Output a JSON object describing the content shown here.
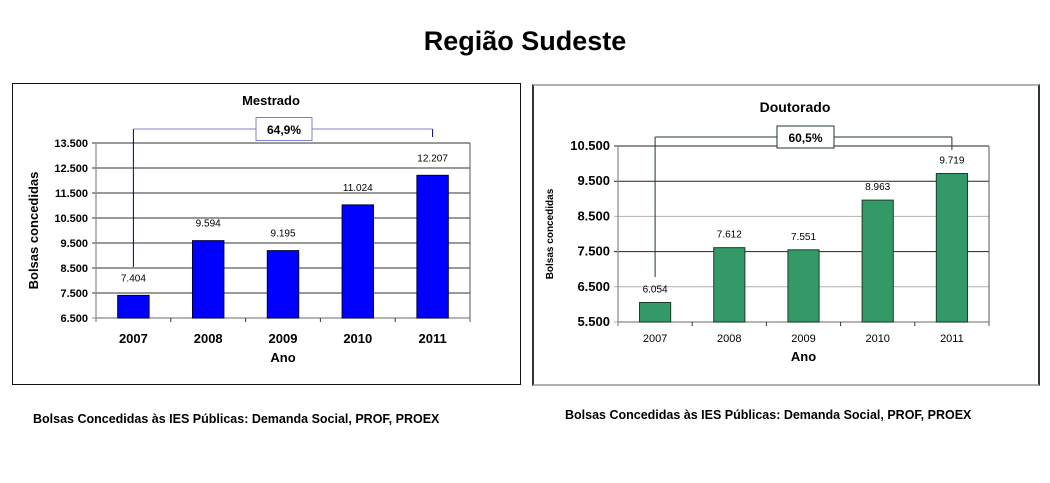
{
  "page": {
    "title": "Região Sudeste"
  },
  "footers": {
    "left": "Bolsas Concedidas às IES Públicas: Demanda Social, PROF, PROEX",
    "right": "Bolsas Concedidas às IES Públicas: Demanda Social, PROF, PROEX"
  },
  "chart_data": [
    {
      "type": "bar",
      "title": "Mestrado",
      "xlabel": "Ano",
      "ylabel": "Bolsas concedidas",
      "categories": [
        "2007",
        "2008",
        "2009",
        "2010",
        "2011"
      ],
      "values": [
        7404,
        9594,
        9195,
        11024,
        12207
      ],
      "value_labels": [
        "7.404",
        "9.594",
        "9.195",
        "11.024",
        "12.207"
      ],
      "ylim": [
        6500,
        13500
      ],
      "yticks": [
        6500,
        7500,
        8500,
        9500,
        10500,
        11500,
        12500,
        13500
      ],
      "ytick_labels": [
        "6.500",
        "7.500",
        "8.500",
        "9.500",
        "10.500",
        "11.500",
        "12.500",
        "13.500"
      ],
      "grid": true,
      "legend": null,
      "bar_color": "#0000ff",
      "annotation": {
        "label": "64,9%",
        "from": "2007",
        "to": "2011",
        "type": "bracket-growth"
      }
    },
    {
      "type": "bar",
      "title": "Doutorado",
      "xlabel": "Ano",
      "ylabel": "Bolsas concedidas",
      "categories": [
        "2007",
        "2008",
        "2009",
        "2010",
        "2011"
      ],
      "values": [
        6054,
        7612,
        7551,
        8963,
        9719
      ],
      "value_labels": [
        "6.054",
        "7.612",
        "7.551",
        "8.963",
        "9.719"
      ],
      "ylim": [
        5500,
        10500
      ],
      "yticks": [
        5500,
        6500,
        7500,
        8500,
        9500,
        10500
      ],
      "ytick_labels": [
        "5.500",
        "6.500",
        "7.500",
        "8.500",
        "9.500",
        "10.500"
      ],
      "grid": true,
      "legend": null,
      "bar_color": "#339966",
      "annotation": {
        "label": "60,5%",
        "from": "2007",
        "to": "2011",
        "type": "bracket-growth"
      }
    }
  ]
}
